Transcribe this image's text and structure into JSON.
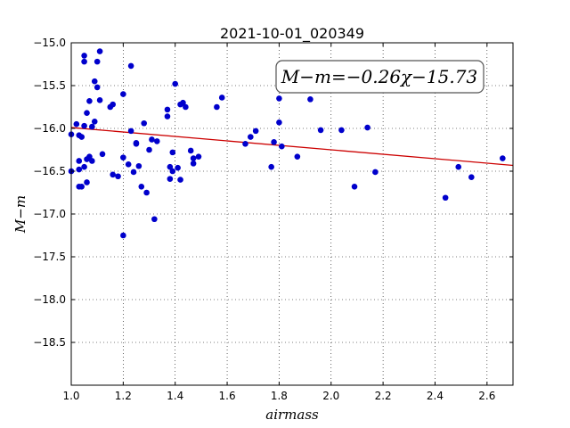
{
  "chart_data": {
    "type": "scatter",
    "title": "2021-10-01_020349",
    "xlabel": "airmass",
    "ylabel": "M−m",
    "xlim": [
      1.0,
      2.7
    ],
    "ylim": [
      -15.0,
      -19.0
    ],
    "y_inverted": true,
    "grid": true,
    "xticks": [
      "1.0",
      "1.2",
      "1.4",
      "1.6",
      "1.8",
      "2.0",
      "2.2",
      "2.4",
      "2.6"
    ],
    "yticks": [
      "−15.0",
      "−15.5",
      "−16.0",
      "−16.5",
      "−17.0",
      "−17.5",
      "−18.0",
      "−18.5"
    ],
    "annotation": "M−m=−0.26χ−15.73",
    "fit_line": {
      "slope": -0.26,
      "intercept": -15.73,
      "color": "#cc0000"
    },
    "point_color": "#0000cc",
    "points": [
      [
        1.0,
        -16.07
      ],
      [
        1.0,
        -16.5
      ],
      [
        1.02,
        -15.95
      ],
      [
        1.03,
        -16.08
      ],
      [
        1.03,
        -16.38
      ],
      [
        1.03,
        -16.48
      ],
      [
        1.03,
        -16.68
      ],
      [
        1.04,
        -16.1
      ],
      [
        1.04,
        -16.68
      ],
      [
        1.05,
        -15.15
      ],
      [
        1.05,
        -15.22
      ],
      [
        1.05,
        -15.97
      ],
      [
        1.05,
        -16.45
      ],
      [
        1.06,
        -15.82
      ],
      [
        1.06,
        -16.63
      ],
      [
        1.06,
        -16.36
      ],
      [
        1.07,
        -15.68
      ],
      [
        1.07,
        -16.33
      ],
      [
        1.08,
        -15.98
      ],
      [
        1.08,
        -16.38
      ],
      [
        1.09,
        -15.92
      ],
      [
        1.09,
        -15.45
      ],
      [
        1.1,
        -15.52
      ],
      [
        1.1,
        -15.22
      ],
      [
        1.11,
        -15.1
      ],
      [
        1.11,
        -15.67
      ],
      [
        1.12,
        -16.3
      ],
      [
        1.15,
        -15.75
      ],
      [
        1.16,
        -15.72
      ],
      [
        1.16,
        -16.54
      ],
      [
        1.18,
        -16.56
      ],
      [
        1.2,
        -15.6
      ],
      [
        1.2,
        -16.34
      ],
      [
        1.2,
        -17.25
      ],
      [
        1.22,
        -16.42
      ],
      [
        1.23,
        -15.27
      ],
      [
        1.23,
        -16.03
      ],
      [
        1.24,
        -16.51
      ],
      [
        1.25,
        -16.17
      ],
      [
        1.25,
        -16.18
      ],
      [
        1.26,
        -16.44
      ],
      [
        1.27,
        -16.68
      ],
      [
        1.28,
        -15.94
      ],
      [
        1.29,
        -16.75
      ],
      [
        1.3,
        -16.25
      ],
      [
        1.31,
        -16.13
      ],
      [
        1.32,
        -17.06
      ],
      [
        1.33,
        -16.15
      ],
      [
        1.37,
        -15.78
      ],
      [
        1.37,
        -15.86
      ],
      [
        1.38,
        -16.45
      ],
      [
        1.38,
        -16.59
      ],
      [
        1.39,
        -16.5
      ],
      [
        1.39,
        -16.28
      ],
      [
        1.4,
        -15.48
      ],
      [
        1.41,
        -16.46
      ],
      [
        1.42,
        -15.72
      ],
      [
        1.42,
        -16.6
      ],
      [
        1.43,
        -15.7
      ],
      [
        1.44,
        -15.75
      ],
      [
        1.46,
        -16.26
      ],
      [
        1.47,
        -16.35
      ],
      [
        1.47,
        -16.41
      ],
      [
        1.49,
        -16.33
      ],
      [
        1.56,
        -15.75
      ],
      [
        1.58,
        -15.64
      ],
      [
        1.67,
        -16.18
      ],
      [
        1.69,
        -16.1
      ],
      [
        1.71,
        -16.03
      ],
      [
        1.77,
        -16.45
      ],
      [
        1.78,
        -16.16
      ],
      [
        1.8,
        -15.65
      ],
      [
        1.8,
        -15.93
      ],
      [
        1.81,
        -16.21
      ],
      [
        1.87,
        -16.33
      ],
      [
        1.92,
        -15.66
      ],
      [
        1.96,
        -16.02
      ],
      [
        2.04,
        -16.02
      ],
      [
        2.09,
        -16.68
      ],
      [
        2.14,
        -15.99
      ],
      [
        2.17,
        -16.51
      ],
      [
        2.44,
        -16.81
      ],
      [
        2.49,
        -16.45
      ],
      [
        2.54,
        -16.57
      ],
      [
        2.66,
        -16.35
      ]
    ]
  }
}
